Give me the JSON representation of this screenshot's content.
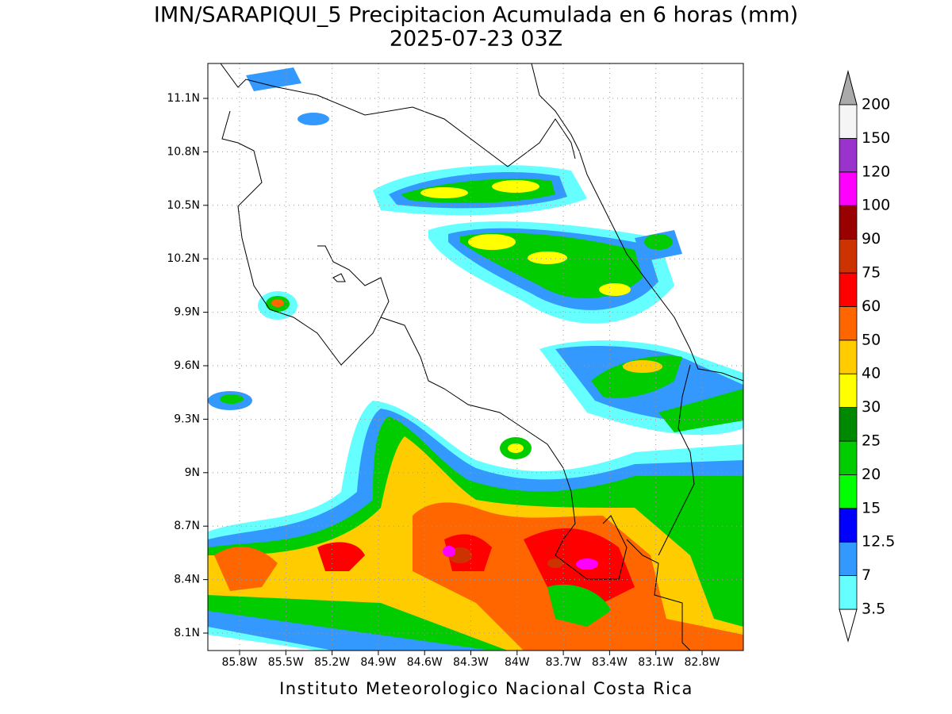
{
  "title": "IMN/SARAPIQUI_5 Precipitacion Acumulada en 6 horas (mm)",
  "subtitle": "2025-07-23 03Z",
  "lat_labels": [
    "11.1N",
    "10.8N",
    "10.5N",
    "10.2N",
    "9.9N",
    "9.6N",
    "9.3N",
    "9N",
    "8.7N",
    "8.4N",
    "8.1N"
  ],
  "lon_labels": [
    "85.8W",
    "85.5W",
    "85.2W",
    "84.9W",
    "84.6W",
    "84.3W",
    "84W",
    "83.7W",
    "83.4W",
    "83.1W",
    "82.8W"
  ],
  "colorbar": {
    "levels": [
      "3.5",
      "7",
      "12.5",
      "15",
      "20",
      "25",
      "30",
      "40",
      "50",
      "60",
      "75",
      "90",
      "100",
      "120",
      "150",
      "200"
    ],
    "colors": [
      "#66ffff",
      "#3399ff",
      "#0000ff",
      "#00ff00",
      "#00cc00",
      "#008800",
      "#ffff00",
      "#ffcc00",
      "#ff6600",
      "#ff0000",
      "#cc3300",
      "#990000",
      "#ff00ff",
      "#9933cc",
      "#f5f5f5"
    ],
    "below_color": "#ffffff",
    "above_color": "#aaaaaa"
  },
  "footer": "Instituto Meteorologico Nacional Costa Rica"
}
